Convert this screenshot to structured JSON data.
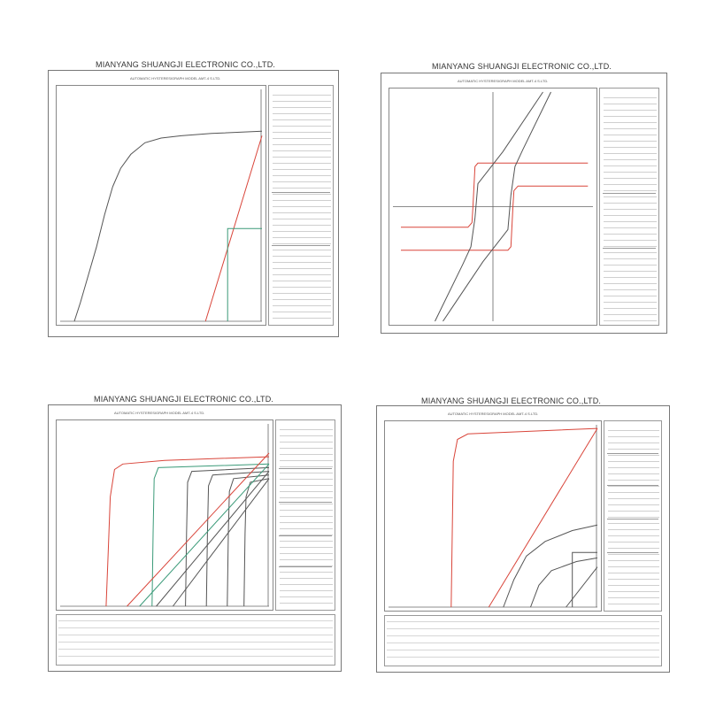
{
  "panels": [
    {
      "company": "MIANYANG SHUANGJI ELECTRONIC CO.,LTD.",
      "subtitle": "AUTOMATIC HYSTERESIGRAPH MODEL AMT-4     S.LTD."
    },
    {
      "company": "MIANYANG SHUANGJI ELECTRONIC CO.,LTD.",
      "subtitle": "AUTOMATIC HYSTERESIGRAPH MODEL AMT-4     S.LTD."
    },
    {
      "company": "MIANYANG SHUANGJI ELECTRONIC CO.,LTD.",
      "subtitle": "AUTOMATIC HYSTERESIGRAPH MODEL AMT-4     S.LTD."
    },
    {
      "company": "MIANYANG SHUANGJI ELECTRONIC CO.,LTD.",
      "subtitle": "AUTOMATIC HYSTERESIGRAPH MODEL AMT-4     S.LTD."
    }
  ],
  "chart_data": [
    {
      "type": "line",
      "title": "MIANYANG SHUANGJI ELECTRONIC CO.,LTD.",
      "subtitle": "AUTOMATIC HYSTERESIGRAPH MODEL AMT-4     S.LTD.",
      "grid": false,
      "xlim": [
        0,
        100
      ],
      "ylim": [
        0,
        100
      ],
      "series": [
        {
          "color": "#555555",
          "points": [
            [
              7,
              0
            ],
            [
              10,
              8
            ],
            [
              14,
              20
            ],
            [
              18,
              32
            ],
            [
              22,
              46
            ],
            [
              26,
              58
            ],
            [
              30,
              66
            ],
            [
              35,
              72
            ],
            [
              42,
              77
            ],
            [
              50,
              79
            ],
            [
              60,
              80
            ],
            [
              75,
              81
            ],
            [
              100,
              82
            ]
          ]
        },
        {
          "color": "#d9453a",
          "points": [
            [
              72,
              0
            ],
            [
              100,
              80
            ]
          ]
        },
        {
          "color": "#3a9a78",
          "points": [
            [
              83,
              0
            ],
            [
              83,
              40
            ],
            [
              100,
              40
            ]
          ]
        }
      ]
    },
    {
      "type": "line",
      "title": "MIANYANG SHUANGJI ELECTRONIC CO.,LTD.",
      "subtitle": "AUTOMATIC HYSTERESIGRAPH MODEL AMT-4     S.LTD.",
      "grid": false,
      "xlim": [
        -100,
        100
      ],
      "ylim": [
        -100,
        100
      ],
      "series": [
        {
          "color": "#d9453a",
          "points": [
            [
              -92,
              -18
            ],
            [
              -25,
              -18
            ],
            [
              -21,
              -14
            ],
            [
              -20,
              0
            ],
            [
              -18,
              35
            ],
            [
              -15,
              38
            ],
            [
              10,
              38
            ],
            [
              95,
              38
            ]
          ]
        },
        {
          "color": "#d9453a",
          "points": [
            [
              95,
              18
            ],
            [
              25,
              18
            ],
            [
              21,
              14
            ],
            [
              20,
              0
            ],
            [
              18,
              -35
            ],
            [
              15,
              -38
            ],
            [
              -10,
              -38
            ],
            [
              -92,
              -38
            ]
          ]
        },
        {
          "color": "#555555",
          "points": [
            [
              -58,
              -100
            ],
            [
              -30,
              -50
            ],
            [
              -22,
              -35
            ],
            [
              -18,
              -10
            ],
            [
              -15,
              20
            ],
            [
              10,
              48
            ],
            [
              50,
              100
            ]
          ]
        },
        {
          "color": "#555555",
          "points": [
            [
              58,
              100
            ],
            [
              30,
              50
            ],
            [
              22,
              35
            ],
            [
              18,
              10
            ],
            [
              15,
              -20
            ],
            [
              -10,
              -48
            ],
            [
              -50,
              -100
            ]
          ]
        }
      ]
    },
    {
      "type": "line",
      "title": "MIANYANG SHUANGJI ELECTRONIC CO.,LTD.",
      "subtitle": "AUTOMATIC HYSTERESIGRAPH MODEL AMT-4     S.LTD.",
      "grid": false,
      "xlim": [
        0,
        100
      ],
      "ylim": [
        0,
        100
      ],
      "series": [
        {
          "color": "#d9453a",
          "points": [
            [
              22,
              0
            ],
            [
              23,
              30
            ],
            [
              24,
              60
            ],
            [
              26,
              75
            ],
            [
              30,
              78
            ],
            [
              50,
              80
            ],
            [
              100,
              82
            ]
          ]
        },
        {
          "color": "#3a9a78",
          "points": [
            [
              44,
              0
            ],
            [
              44.5,
              40
            ],
            [
              45,
              70
            ],
            [
              47,
              76
            ],
            [
              100,
              78
            ]
          ]
        },
        {
          "color": "#555555",
          "points": [
            [
              60,
              0
            ],
            [
              60.5,
              40
            ],
            [
              61,
              68
            ],
            [
              63,
              74
            ],
            [
              100,
              76
            ]
          ]
        },
        {
          "color": "#555555",
          "points": [
            [
              70,
              0
            ],
            [
              70.5,
              40
            ],
            [
              71,
              66
            ],
            [
              73,
              72
            ],
            [
              100,
              74
            ]
          ]
        },
        {
          "color": "#555555",
          "points": [
            [
              80,
              0
            ],
            [
              80.5,
              40
            ],
            [
              81,
              63
            ],
            [
              83,
              70
            ],
            [
              100,
              72
            ]
          ]
        },
        {
          "color": "#555555",
          "points": [
            [
              88,
              0
            ],
            [
              88.5,
              40
            ],
            [
              89,
              60
            ],
            [
              91,
              68
            ],
            [
              100,
              70
            ]
          ]
        },
        {
          "color": "#d9453a",
          "points": [
            [
              32,
              0
            ],
            [
              100,
              84
            ]
          ]
        },
        {
          "color": "#3a9a78",
          "points": [
            [
              38,
              0
            ],
            [
              100,
              78
            ]
          ]
        },
        {
          "color": "#555555",
          "points": [
            [
              46,
              0
            ],
            [
              100,
              74
            ]
          ]
        },
        {
          "color": "#555555",
          "points": [
            [
              54,
              0
            ],
            [
              100,
              70
            ]
          ]
        }
      ]
    },
    {
      "type": "line",
      "title": "MIANYANG SHUANGJI ELECTRONIC CO.,LTD.",
      "subtitle": "AUTOMATIC HYSTERESIGRAPH MODEL AMT-4     S.LTD.",
      "grid": false,
      "xlim": [
        0,
        100
      ],
      "ylim": [
        0,
        100
      ],
      "series": [
        {
          "color": "#d9453a",
          "points": [
            [
              30,
              0
            ],
            [
              30.5,
              40
            ],
            [
              31,
              80
            ],
            [
              33,
              92
            ],
            [
              38,
              95
            ],
            [
              100,
              98
            ]
          ]
        },
        {
          "color": "#d9453a",
          "points": [
            [
              48,
              0
            ],
            [
              100,
              98
            ]
          ]
        },
        {
          "color": "#555555",
          "points": [
            [
              55,
              0
            ],
            [
              60,
              15
            ],
            [
              66,
              28
            ],
            [
              75,
              36
            ],
            [
              88,
              42
            ],
            [
              100,
              45
            ]
          ]
        },
        {
          "color": "#555555",
          "points": [
            [
              68,
              0
            ],
            [
              72,
              12
            ],
            [
              78,
              20
            ],
            [
              90,
              25
            ],
            [
              100,
              27
            ]
          ]
        },
        {
          "color": "#555555",
          "points": [
            [
              88,
              0
            ],
            [
              88,
              30
            ],
            [
              100,
              30
            ]
          ]
        },
        {
          "color": "#555555",
          "points": [
            [
              85,
              0
            ],
            [
              100,
              22
            ]
          ]
        }
      ]
    }
  ]
}
